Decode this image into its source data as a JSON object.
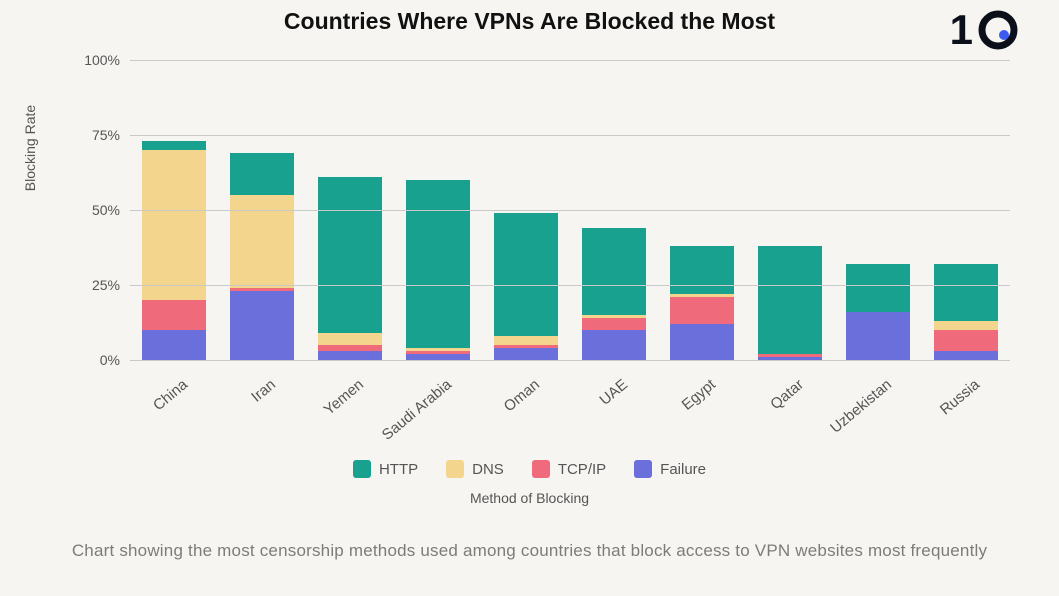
{
  "title": "Countries Where VPNs Are Blocked the Most",
  "title_fontsize": 23,
  "title_color": "#111111",
  "logo": {
    "text": "1",
    "fontsize": 42,
    "ring_color": "#0b0f1a",
    "dot_color": "#3d5bf0"
  },
  "chart": {
    "type": "stacked-bar",
    "background_color": "#f6f5f1",
    "grid_color": "#c9c9c9",
    "ylabel": "Blocking Rate",
    "xlabel": "Method of Blocking",
    "label_fontsize": 14,
    "label_color": "#555555",
    "tick_fontsize": 14,
    "tick_color": "#555555",
    "xlabel_fontsize": 15,
    "xlabel_rotation_deg": -40,
    "ylim": [
      0,
      100
    ],
    "ytick_step": 25,
    "ytick_suffix": "%",
    "bar_width_ratio": 0.72,
    "categories": [
      "China",
      "Iran",
      "Yemen",
      "Saudi Arabia",
      "Oman",
      "UAE",
      "Egypt",
      "Qatar",
      "Uzbekistan",
      "Russia"
    ],
    "series": [
      {
        "name": "HTTP",
        "color": "#18a18e",
        "values": [
          3,
          14,
          52,
          56,
          41,
          29,
          16,
          36,
          16,
          19
        ]
      },
      {
        "name": "DNS",
        "color": "#f4d58d",
        "values": [
          50,
          31,
          4,
          1,
          3,
          1,
          1,
          0,
          0,
          3
        ]
      },
      {
        "name": "TCP/IP",
        "color": "#ef6b7b",
        "values": [
          10,
          1,
          2,
          1,
          1,
          4,
          9,
          1,
          0,
          7
        ]
      },
      {
        "name": "Failure",
        "color": "#6b6fdc",
        "values": [
          10,
          23,
          3,
          2,
          4,
          10,
          12,
          1,
          16,
          3
        ]
      }
    ],
    "legend_fontsize": 15
  },
  "caption": "Chart showing the most censorship methods used among countries that block access to VPN websites most frequently",
  "caption_fontsize": 17,
  "caption_color": "#7c7c78"
}
